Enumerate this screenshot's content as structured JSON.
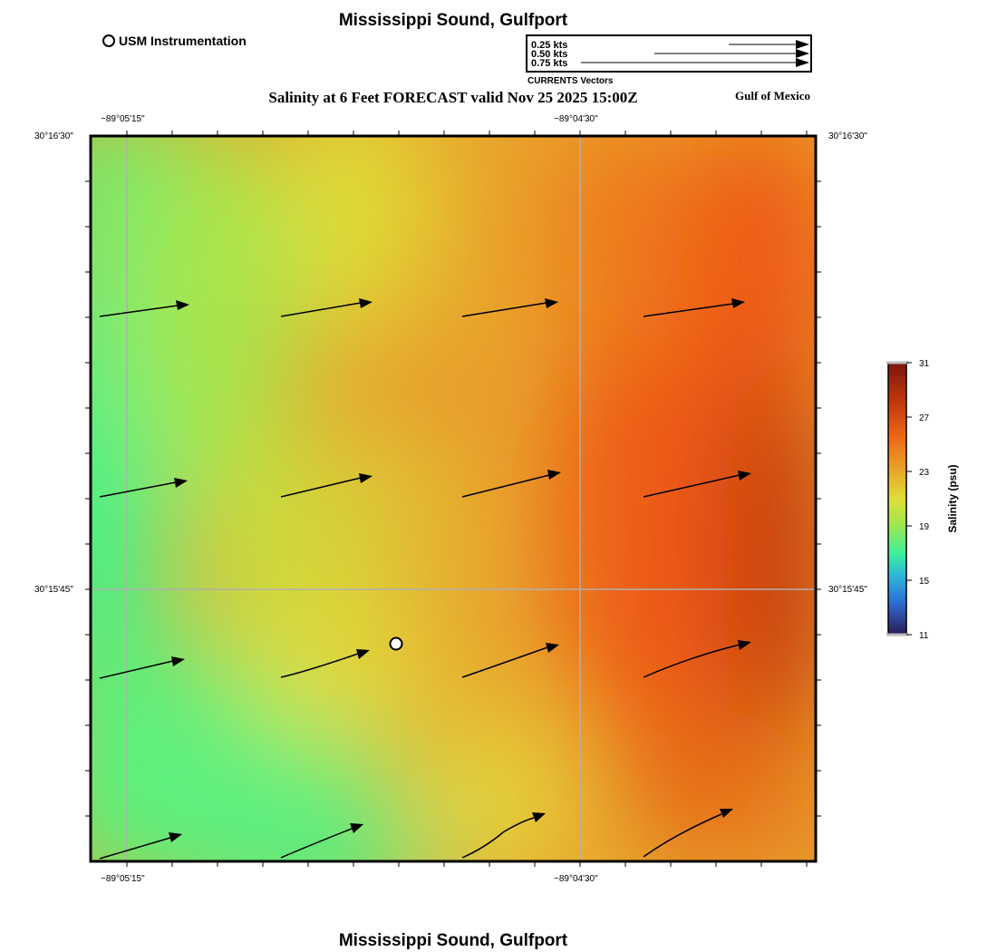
{
  "header": {
    "title": "Mississippi Sound, Gulfport",
    "subtitle": "Salinity at 6 Feet FORECAST valid Nov 25 2025 15:00Z",
    "region_label": "Gulf of Mexico"
  },
  "footer": {
    "title": "Mississippi Sound, Gulfport"
  },
  "station_legend": {
    "label": "USM Instrumentation"
  },
  "vector_legend": {
    "caption": "CURRENTS Vectors",
    "entries": [
      {
        "label": "0.25 kts",
        "speed_kts": 0.25
      },
      {
        "label": "0.50 kts",
        "speed_kts": 0.5
      },
      {
        "label": "0.75 kts",
        "speed_kts": 0.75
      }
    ]
  },
  "map": {
    "longitude_labels": [
      "−89°05'15\"",
      "−89°04'30\""
    ],
    "latitude_labels": [
      "30°16'30\"",
      "30°15'45\""
    ],
    "gridline_color": "#b0b0b0",
    "station": {
      "name": "USM Instrumentation"
    },
    "current_vectors": "4x4 grid of flow arrows, predominantly toward east-northeast"
  },
  "colorbar": {
    "title": "Salinity (psu)",
    "ticks": [
      "31",
      "27",
      "23",
      "19",
      "15",
      "11"
    ],
    "min": 11,
    "max": 31,
    "colors": [
      "#2b1a55",
      "#2c6fd6",
      "#2fb8d9",
      "#4ef28a",
      "#c8e23a",
      "#e3d63a",
      "#ea9a28",
      "#ee5a16",
      "#bf3a0e",
      "#7e1410"
    ]
  },
  "colors": {
    "low_salinity": "#4ef48a",
    "mid_salinity": "#e0dc3a",
    "high_salinity": "#ee5a16",
    "max_salinity": "#bf360c"
  }
}
